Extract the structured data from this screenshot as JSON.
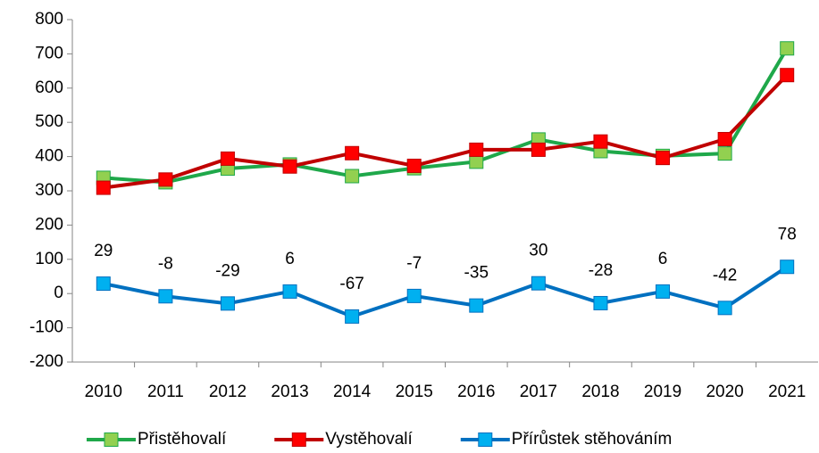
{
  "chart_data": {
    "type": "line",
    "categories": [
      "2010",
      "2011",
      "2012",
      "2013",
      "2014",
      "2015",
      "2016",
      "2017",
      "2018",
      "2019",
      "2020",
      "2021"
    ],
    "series": [
      {
        "name": "Přistěhovalí",
        "color": "#1fa84a",
        "marker_color": "#92d050",
        "values": [
          338,
          325,
          365,
          377,
          343,
          366,
          385,
          450,
          416,
          402,
          409,
          716
        ]
      },
      {
        "name": "Vystěhovalí",
        "color": "#c00000",
        "marker_color": "#ff0000",
        "values": [
          309,
          333,
          394,
          371,
          410,
          373,
          420,
          420,
          444,
          396,
          451,
          638
        ]
      },
      {
        "name": "Přírůstek stěhováním",
        "color": "#0070c0",
        "marker_color": "#00b0f0",
        "values": [
          29,
          -8,
          -29,
          6,
          -67,
          -7,
          -35,
          30,
          -28,
          6,
          -42,
          78
        ],
        "data_labels": true
      }
    ],
    "ylim": [
      -200,
      800
    ],
    "yticks": [
      -200,
      -100,
      0,
      100,
      200,
      300,
      400,
      500,
      600,
      700,
      800
    ],
    "grid": false,
    "legend": "bottom"
  }
}
